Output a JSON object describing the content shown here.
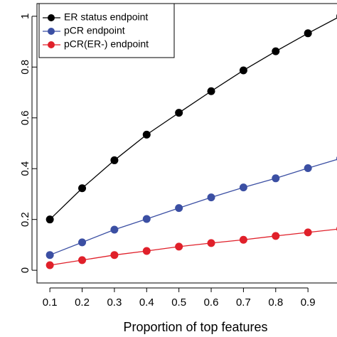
{
  "chart_data": {
    "type": "line",
    "x_label": "Proportion of top features",
    "x": [
      0.1,
      0.2,
      0.3,
      0.4,
      0.5,
      0.6,
      0.7,
      0.8,
      0.9,
      1.0
    ],
    "series": [
      {
        "name": "ER status endpoint",
        "color": "#000000",
        "values": [
          0.2,
          0.323,
          0.433,
          0.534,
          0.62,
          0.705,
          0.787,
          0.862,
          0.933,
          1.0
        ]
      },
      {
        "name": "pCR endpoint",
        "color": "#3b4fa3",
        "values": [
          0.06,
          0.11,
          0.16,
          0.202,
          0.245,
          0.287,
          0.326,
          0.362,
          0.402,
          0.44
        ]
      },
      {
        "name": "pCR(ER-) endpoint",
        "color": "#e0202a",
        "values": [
          0.02,
          0.04,
          0.06,
          0.076,
          0.093,
          0.107,
          0.12,
          0.135,
          0.149,
          0.163
        ]
      }
    ],
    "xlim": [
      0.06,
      0.99
    ],
    "ylim": [
      -0.05,
      1.05
    ],
    "xticks": [
      0.1,
      0.2,
      0.3,
      0.4,
      0.5,
      0.6,
      0.7,
      0.8,
      0.9
    ],
    "yticks": [
      0,
      0.2,
      0.4,
      0.6,
      0.8,
      1
    ],
    "legend": "top-left"
  }
}
